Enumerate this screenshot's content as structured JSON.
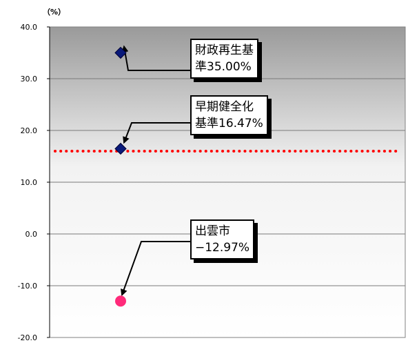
{
  "chart_data": {
    "type": "scatter",
    "unit_label": "（%）",
    "ylim": [
      -20,
      40
    ],
    "yticks": [
      "40.0",
      "30.0",
      "20.0",
      "10.0",
      "0.0",
      "-10.0",
      "-20.0"
    ],
    "ytick_values": [
      40,
      30,
      20,
      10,
      0,
      -10,
      -20
    ],
    "grid": true,
    "points": [
      {
        "y": 35.0,
        "marker": "diamond",
        "color": "#0a1a7a"
      },
      {
        "y": 16.47,
        "marker": "diamond",
        "color": "#0a1a7a"
      },
      {
        "y": -12.97,
        "marker": "circle",
        "color": "#ff2a7a"
      }
    ],
    "reference_line": {
      "y": 16.0,
      "style": "dotted",
      "color": "#ff0000"
    },
    "annotations": [
      {
        "line1": "財政再生基",
        "line2": "準35.00%"
      },
      {
        "line1": "早期健全化",
        "line2": "基準16.47%"
      },
      {
        "line1": "出雲市",
        "line2": "−12.97%"
      }
    ]
  }
}
